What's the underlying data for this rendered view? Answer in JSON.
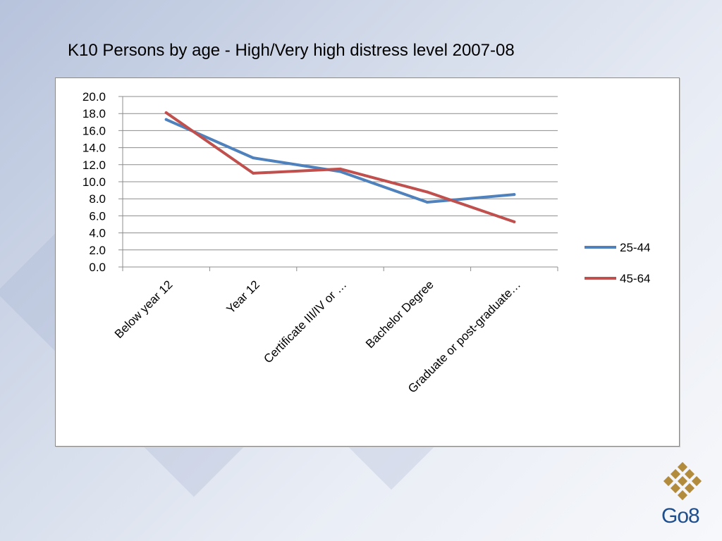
{
  "slide": {
    "title": "K10 Persons by age - High/Very high distress level 2007-08",
    "logo_text": "Go8"
  },
  "colors": {
    "series_25_44": "#4f81bd",
    "series_45_64": "#c0504d",
    "gridline": "#8c8c8c",
    "logo_gold": "#b38b3c",
    "logo_blue": "#1f4e8c"
  },
  "chart_data": {
    "type": "line",
    "title": "",
    "xlabel": "",
    "ylabel": "",
    "categories": [
      "Below year 12",
      "Year 12",
      "Certificate III/IV or …",
      "Bachelor Degree",
      "Graduate or post-graduate…"
    ],
    "series": [
      {
        "name": "25-44",
        "values": [
          17.3,
          12.8,
          11.2,
          7.6,
          8.5
        ]
      },
      {
        "name": "45-64",
        "values": [
          18.1,
          11.0,
          11.5,
          8.8,
          5.3
        ]
      }
    ],
    "ylim": [
      0,
      20
    ],
    "y_ticks": [
      "0.0",
      "2.0",
      "4.0",
      "6.0",
      "8.0",
      "10.0",
      "12.0",
      "14.0",
      "16.0",
      "18.0",
      "20.0"
    ],
    "grid": true,
    "legend_position": "right"
  }
}
